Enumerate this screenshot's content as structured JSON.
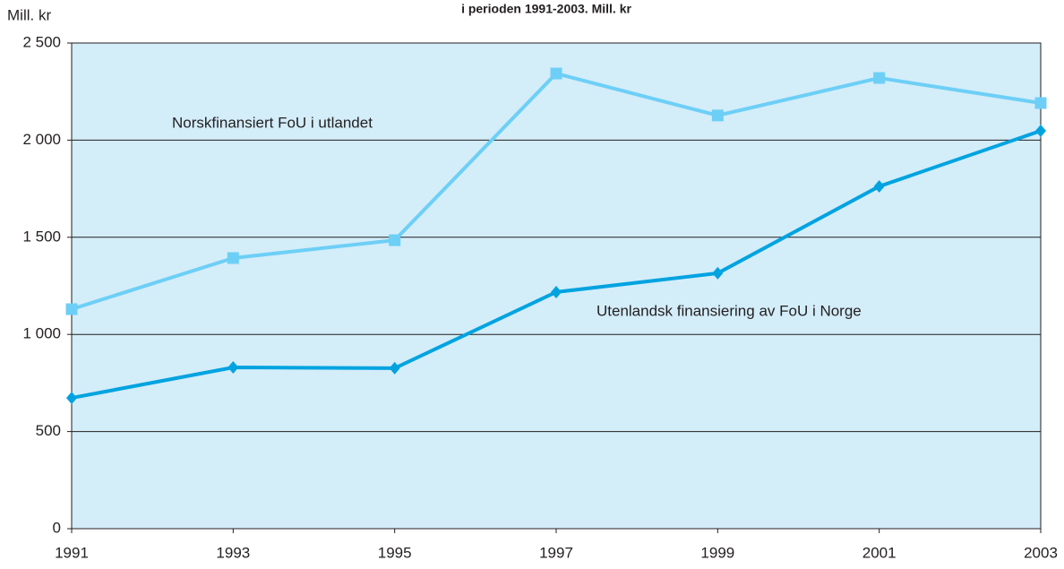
{
  "chart_data": {
    "type": "line",
    "title": "i perioden 1991-2003. Mill. kr",
    "y_label": "Mill. kr",
    "x": [
      1991,
      1993,
      1995,
      1997,
      1999,
      2001,
      2003
    ],
    "xlim": [
      1991,
      2003
    ],
    "xticks": [
      1991,
      1993,
      1995,
      1997,
      1999,
      2001,
      2003
    ],
    "ylim": [
      0,
      2500
    ],
    "yticks": [
      0,
      500,
      {
        "value": 1000,
        "label": "1 000"
      },
      {
        "value": 1500,
        "label": "1 500"
      },
      {
        "value": 2000,
        "label": "2 000"
      },
      {
        "value": 2500,
        "label": "2 500"
      }
    ],
    "grid": true,
    "background": "#d3edf9",
    "series": [
      {
        "name": "Norskfinansiert FoU i utlandet",
        "color": "#6dcff6",
        "marker": "square",
        "values": [
          1130,
          1393,
          1485,
          2343,
          2127,
          2320,
          2191
        ]
      },
      {
        "name": "Utenlandsk finansiering av FoU i Norge",
        "color": "#00a3e0",
        "marker": "diamond",
        "values": [
          673,
          830,
          826,
          1218,
          1315,
          1762,
          2048
        ]
      }
    ]
  }
}
